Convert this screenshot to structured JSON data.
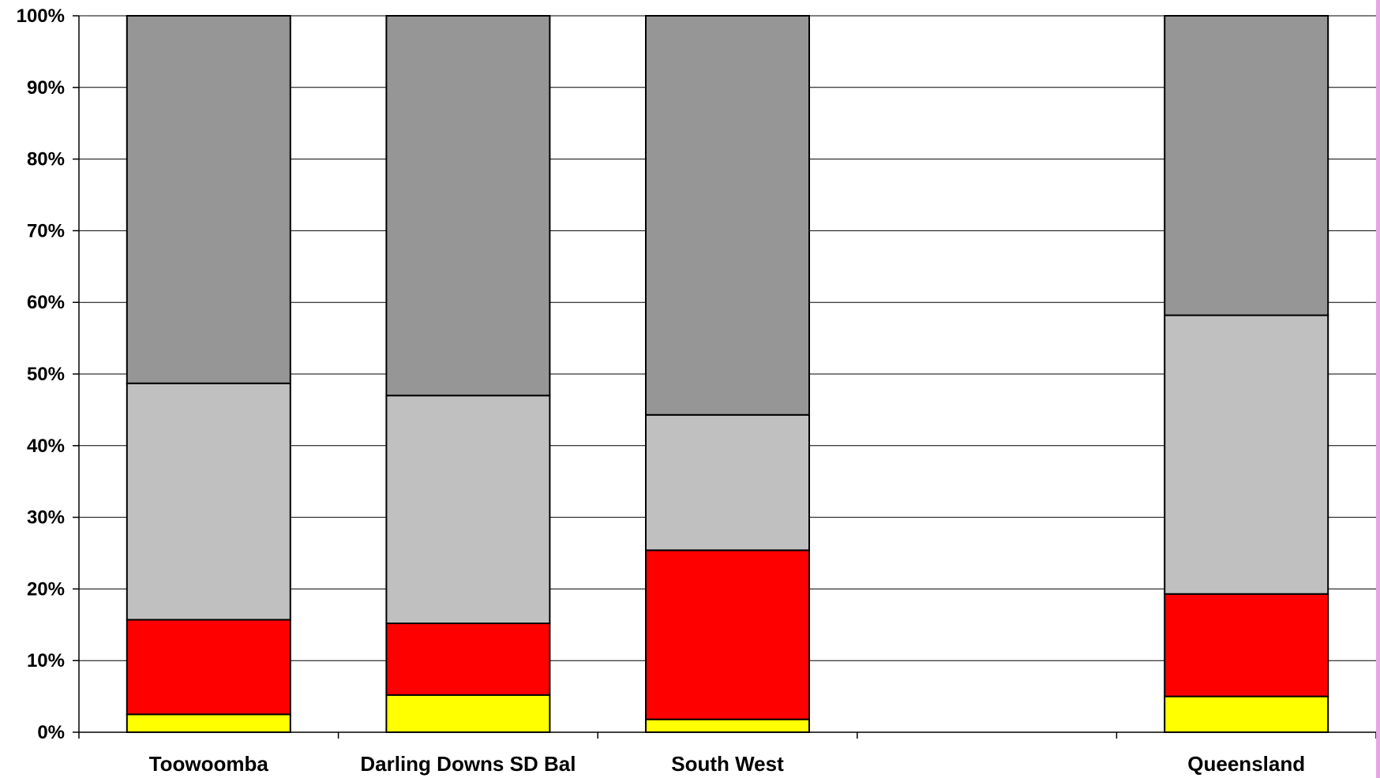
{
  "chart_data": {
    "type": "bar",
    "stacked": true,
    "percent_stacked": true,
    "categories": [
      "Toowoomba",
      "Darling Downs SD Bal",
      "South West",
      "",
      "Queensland"
    ],
    "series": [
      {
        "color": "#ffff00",
        "values": [
          2.5,
          5.2,
          1.8,
          null,
          5.0
        ]
      },
      {
        "color": "#ff0000",
        "values": [
          13.2,
          10.0,
          23.6,
          null,
          14.3
        ]
      },
      {
        "color": "#c0c0c0",
        "values": [
          33.0,
          31.8,
          18.9,
          null,
          38.9
        ]
      },
      {
        "color": "#969696",
        "values": [
          51.3,
          53.0,
          55.7,
          null,
          41.8
        ]
      }
    ],
    "yticks": [
      "0%",
      "10%",
      "20%",
      "30%",
      "40%",
      "50%",
      "60%",
      "70%",
      "80%",
      "90%",
      "100%"
    ],
    "ylim": [
      0,
      100
    ],
    "grid": true,
    "legend": "none"
  }
}
